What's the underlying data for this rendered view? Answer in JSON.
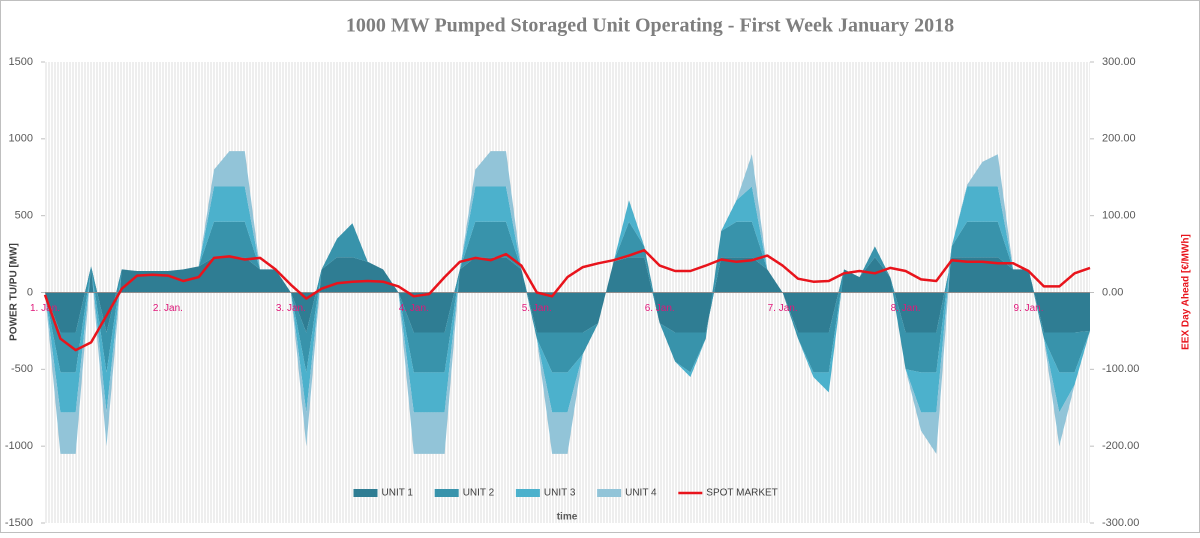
{
  "chart_data": {
    "type": "stacked_area_line",
    "title": "1000 MW Pumped Storaged Unit Operating - First Week January 2018",
    "y_label": "POWER TU/PU [MW]",
    "y2_label": "EEX Day Ahead [€/MWh]",
    "x_label": "time",
    "categories": [
      "1. Jan.",
      null,
      null,
      null,
      null,
      null,
      null,
      null,
      "2. Jan.",
      null,
      null,
      null,
      null,
      null,
      null,
      null,
      "3. Jan.",
      null,
      null,
      null,
      null,
      null,
      null,
      null,
      "4. Jan.",
      null,
      null,
      null,
      null,
      null,
      null,
      null,
      "5. Jan.",
      null,
      null,
      null,
      null,
      null,
      null,
      null,
      "6. Jan.",
      null,
      null,
      null,
      null,
      null,
      null,
      null,
      "7. Jan.",
      null,
      null,
      null,
      null,
      null,
      null,
      null,
      "8. Jan.",
      null,
      null,
      null,
      null,
      null,
      null,
      null,
      "9. Jan.",
      null,
      null,
      null,
      null
    ],
    "series": [
      {
        "name": "UNIT 1",
        "color": "#2f7d93",
        "values": [
          0,
          -260,
          -260,
          170,
          -260,
          150,
          140,
          140,
          140,
          150,
          170,
          230,
          230,
          230,
          150,
          150,
          0,
          -260,
          150,
          230,
          230,
          200,
          150,
          0,
          -260,
          -260,
          -260,
          150,
          230,
          230,
          230,
          150,
          -260,
          -260,
          -260,
          -260,
          -200,
          200,
          230,
          230,
          -200,
          -260,
          -260,
          -260,
          230,
          230,
          230,
          150,
          0,
          -260,
          -260,
          -260,
          150,
          100,
          230,
          100,
          -260,
          -260,
          -260,
          230,
          230,
          230,
          230,
          150,
          150,
          -260,
          -260,
          -260,
          -250
        ]
      },
      {
        "name": "UNIT 2",
        "color": "#3893ab",
        "values": [
          0,
          -260,
          -260,
          0,
          -260,
          0,
          0,
          0,
          0,
          0,
          0,
          230,
          230,
          230,
          0,
          0,
          0,
          -260,
          0,
          120,
          220,
          0,
          0,
          0,
          -260,
          -260,
          -260,
          0,
          230,
          230,
          230,
          0,
          -40,
          -260,
          -260,
          -140,
          0,
          0,
          230,
          70,
          0,
          -190,
          -260,
          -40,
          170,
          230,
          230,
          0,
          0,
          -40,
          -260,
          -260,
          0,
          0,
          70,
          0,
          -240,
          -260,
          -260,
          70,
          230,
          230,
          230,
          0,
          0,
          -40,
          -260,
          -260,
          0
        ]
      },
      {
        "name": "UNIT 3",
        "color": "#4cb1cc",
        "values": [
          0,
          -260,
          -260,
          0,
          -260,
          0,
          0,
          0,
          0,
          0,
          0,
          230,
          230,
          230,
          0,
          0,
          0,
          -260,
          0,
          0,
          0,
          0,
          0,
          0,
          -260,
          -260,
          -260,
          0,
          230,
          230,
          230,
          0,
          0,
          -260,
          -260,
          0,
          0,
          0,
          140,
          0,
          0,
          0,
          -30,
          0,
          0,
          140,
          230,
          0,
          0,
          0,
          -30,
          -130,
          0,
          0,
          0,
          0,
          0,
          -260,
          -260,
          0,
          230,
          230,
          230,
          0,
          0,
          0,
          -260,
          -80,
          0
        ]
      },
      {
        "name": "UNIT 4",
        "color": "#92c4d8",
        "values": [
          0,
          -270,
          -270,
          0,
          -220,
          0,
          0,
          0,
          0,
          0,
          0,
          110,
          230,
          230,
          0,
          0,
          0,
          -220,
          0,
          0,
          0,
          0,
          0,
          0,
          -270,
          -270,
          -270,
          0,
          110,
          230,
          230,
          0,
          0,
          -270,
          -270,
          0,
          0,
          0,
          0,
          0,
          0,
          0,
          0,
          0,
          0,
          0,
          210,
          0,
          0,
          0,
          0,
          0,
          0,
          0,
          0,
          0,
          0,
          -120,
          -270,
          0,
          10,
          160,
          210,
          0,
          0,
          0,
          -220,
          0,
          0
        ]
      },
      {
        "name": "SPOT MARKET",
        "color": "#e8141c",
        "axis": "y2",
        "values": [
          -3,
          -60,
          -75,
          -65,
          -30,
          5,
          22,
          23,
          22,
          15,
          20,
          45,
          47,
          43,
          45,
          30,
          10,
          -8,
          5,
          12,
          14,
          15,
          14,
          8,
          -5,
          -2,
          20,
          40,
          45,
          42,
          50,
          35,
          0,
          -5,
          20,
          33,
          38,
          42,
          48,
          55,
          35,
          28,
          28,
          35,
          43,
          40,
          42,
          48,
          35,
          18,
          14,
          15,
          25,
          28,
          25,
          32,
          28,
          17,
          15,
          42,
          40,
          40,
          38,
          38,
          28,
          8,
          8,
          25,
          32
        ]
      }
    ],
    "ylim": [
      -1500,
      1500
    ],
    "yticks": [
      -1500,
      -1000,
      -500,
      0,
      500,
      1000,
      1500
    ],
    "y2lim": [
      -300,
      300
    ],
    "y2ticks": [
      {
        "value": -300,
        "label": "-300.00"
      },
      {
        "value": -200,
        "label": "-200.00"
      },
      {
        "value": -100,
        "label": "-100.00"
      },
      {
        "value": 0,
        "label": "0.00"
      },
      {
        "value": 100,
        "label": "100.00"
      },
      {
        "value": 200,
        "label": "200.00"
      },
      {
        "value": 300,
        "label": "300.00"
      }
    ],
    "legend": "bottom"
  }
}
